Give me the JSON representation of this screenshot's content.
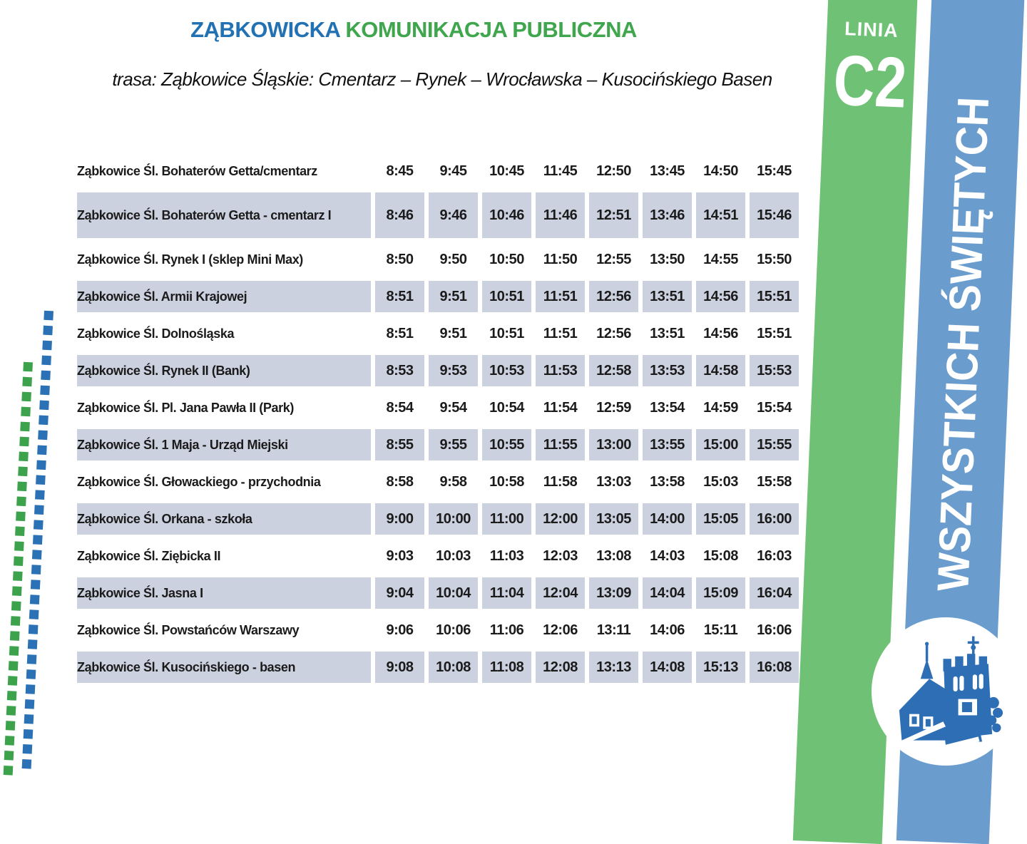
{
  "header": {
    "title_part1": "ZĄBKOWICKA",
    "title_part2": "KOMUNIKACJA PUBLICZNA",
    "subtitle": "trasa: Ząbkowice Śląskie: Cmentarz – Rynek –  Wrocławska – Kusocińskiego Basen"
  },
  "line_badge": {
    "label": "LINIA",
    "code": "C2"
  },
  "banner": {
    "text": "WSZYSTKICH ŚWIĘTYCH"
  },
  "logo": {
    "icon": "leaning-tower-town-logo"
  },
  "colors": {
    "title_blue": "#2271b3",
    "title_green": "#3fa64d",
    "band_green": "#6fc176",
    "band_blue": "#6a9dcd",
    "row_shade": "#ccd1e0",
    "dot_green": "#3ca24b",
    "dot_blue": "#2b71b5",
    "logo_blue": "#2e6eb5"
  },
  "timetable": {
    "stops": [
      {
        "name": "Ząbkowice Śl. Bohaterów Getta/cmentarz",
        "times": [
          "8:45",
          "9:45",
          "10:45",
          "11:45",
          "12:50",
          "13:45",
          "14:50",
          "15:45"
        ]
      },
      {
        "name": "Ząbkowice Śl. Bohaterów Getta - cmentarz I",
        "times": [
          "8:46",
          "9:46",
          "10:46",
          "11:46",
          "12:51",
          "13:46",
          "14:51",
          "15:46"
        ]
      },
      {
        "name": "Ząbkowice Śl. Rynek I (sklep Mini Max)",
        "times": [
          "8:50",
          "9:50",
          "10:50",
          "11:50",
          "12:55",
          "13:50",
          "14:55",
          "15:50"
        ]
      },
      {
        "name": "Ząbkowice Śl. Armii Krajowej",
        "times": [
          "8:51",
          "9:51",
          "10:51",
          "11:51",
          "12:56",
          "13:51",
          "14:56",
          "15:51"
        ]
      },
      {
        "name": "Ząbkowice Śl. Dolnośląska",
        "times": [
          "8:51",
          "9:51",
          "10:51",
          "11:51",
          "12:56",
          "13:51",
          "14:56",
          "15:51"
        ]
      },
      {
        "name": "Ząbkowice Śl. Rynek II (Bank)",
        "times": [
          "8:53",
          "9:53",
          "10:53",
          "11:53",
          "12:58",
          "13:53",
          "14:58",
          "15:53"
        ]
      },
      {
        "name": "Ząbkowice Śl. Pl. Jana Pawła II (Park)",
        "times": [
          "8:54",
          "9:54",
          "10:54",
          "11:54",
          "12:59",
          "13:54",
          "14:59",
          "15:54"
        ]
      },
      {
        "name": "Ząbkowice Śl. 1 Maja - Urząd Miejski",
        "times": [
          "8:55",
          "9:55",
          "10:55",
          "11:55",
          "13:00",
          "13:55",
          "15:00",
          "15:55"
        ]
      },
      {
        "name": "Ząbkowice Śl. Głowackiego - przychodnia",
        "times": [
          "8:58",
          "9:58",
          "10:58",
          "11:58",
          "13:03",
          "13:58",
          "15:03",
          "15:58"
        ]
      },
      {
        "name": "Ząbkowice Śl. Orkana - szkoła",
        "times": [
          "9:00",
          "10:00",
          "11:00",
          "12:00",
          "13:05",
          "14:00",
          "15:05",
          "16:00"
        ]
      },
      {
        "name": "Ząbkowice Śl. Ziębicka II",
        "times": [
          "9:03",
          "10:03",
          "11:03",
          "12:03",
          "13:08",
          "14:03",
          "15:08",
          "16:03"
        ]
      },
      {
        "name": "Ząbkowice Śl. Jasna I",
        "times": [
          "9:04",
          "10:04",
          "11:04",
          "12:04",
          "13:09",
          "14:04",
          "15:09",
          "16:04"
        ]
      },
      {
        "name": "Ząbkowice Śl. Powstańców Warszawy",
        "times": [
          "9:06",
          "10:06",
          "11:06",
          "12:06",
          "13:11",
          "14:06",
          "15:11",
          "16:06"
        ]
      },
      {
        "name": "Ząbkowice Śl. Kusocińskiego - basen",
        "times": [
          "9:08",
          "10:08",
          "11:08",
          "12:08",
          "13:13",
          "14:08",
          "15:13",
          "16:08"
        ]
      }
    ]
  },
  "decor": {
    "blue_dot_count": 31,
    "green_dot_count": 28
  }
}
